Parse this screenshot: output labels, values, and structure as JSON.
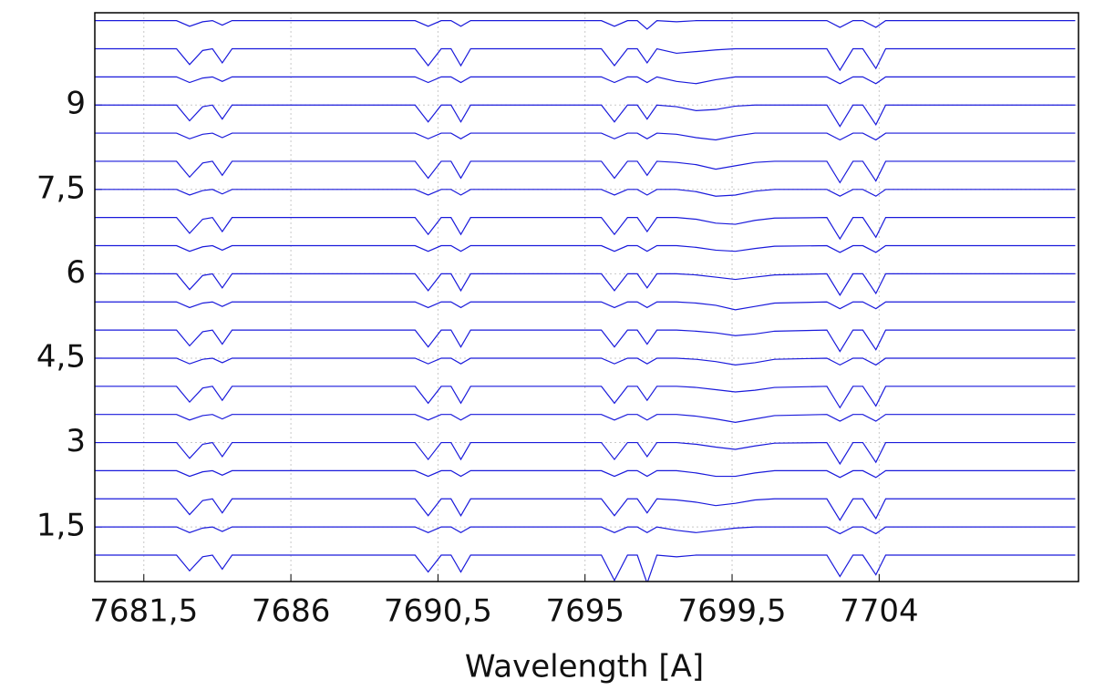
{
  "chart_data": {
    "type": "line",
    "xlabel": "Wavelength [A]",
    "color": "#1a1adb",
    "grid": true,
    "xlim": [
      7680,
      7710.1
    ],
    "ylim": [
      0.53,
      10.64
    ],
    "xticks": [
      {
        "value": 7681.5,
        "label": "7681,5"
      },
      7686,
      {
        "value": 7690.5,
        "label": "7690,5"
      },
      7695,
      {
        "value": 7699.5,
        "label": "7699,5"
      },
      7704
    ],
    "yticks": [
      {
        "value": 1.5,
        "label": "1,5"
      },
      3,
      {
        "value": 4.5,
        "label": "4,5"
      },
      6,
      {
        "value": 7.5,
        "label": "7,5"
      },
      9
    ],
    "x": [
      7680,
      7682.5,
      7682.9,
      7683.3,
      7683.6,
      7683.9,
      7684.2,
      7686,
      7689.8,
      7690.2,
      7690.6,
      7690.9,
      7691.2,
      7691.5,
      7694,
      7695.5,
      7695.9,
      7696.3,
      7696.6,
      7696.9,
      7697.2,
      7697.8,
      7698.4,
      7699,
      7699.6,
      7700.2,
      7700.8,
      7702.4,
      7702.8,
      7703.2,
      7703.5,
      7703.9,
      7704.2,
      7707,
      7710
    ],
    "series": [
      {
        "values": [
          1,
          1,
          0.72,
          0.97,
          1,
          0.75,
          1,
          1,
          1,
          0.7,
          1,
          1,
          0.7,
          1,
          1,
          1,
          0.55,
          1,
          1,
          0.5,
          1,
          0.97,
          1,
          1,
          1,
          1,
          1,
          1,
          0.62,
          1,
          1,
          0.65,
          1,
          1,
          1
        ]
      },
      {
        "values": [
          1.5,
          1.5,
          1.4,
          1.48,
          1.5,
          1.42,
          1.5,
          1.5,
          1.5,
          1.4,
          1.5,
          1.5,
          1.4,
          1.5,
          1.5,
          1.5,
          1.4,
          1.5,
          1.5,
          1.4,
          1.5,
          1.44,
          1.4,
          1.44,
          1.48,
          1.5,
          1.5,
          1.5,
          1.38,
          1.5,
          1.5,
          1.38,
          1.5,
          1.5,
          1.5
        ]
      },
      {
        "values": [
          2,
          2,
          1.72,
          1.97,
          2,
          1.75,
          2,
          2,
          2,
          1.7,
          2,
          2,
          1.7,
          2,
          2,
          2,
          1.7,
          2,
          2,
          1.75,
          2,
          1.98,
          1.94,
          1.88,
          1.92,
          1.98,
          2,
          2,
          1.62,
          2,
          2,
          1.65,
          2,
          2,
          2
        ]
      },
      {
        "values": [
          2.5,
          2.5,
          2.4,
          2.48,
          2.5,
          2.42,
          2.5,
          2.5,
          2.5,
          2.4,
          2.5,
          2.5,
          2.4,
          2.5,
          2.5,
          2.5,
          2.4,
          2.5,
          2.5,
          2.4,
          2.5,
          2.5,
          2.46,
          2.4,
          2.4,
          2.46,
          2.5,
          2.5,
          2.38,
          2.5,
          2.5,
          2.38,
          2.5,
          2.5,
          2.5
        ]
      },
      {
        "values": [
          3,
          3,
          2.72,
          2.97,
          3,
          2.75,
          3,
          3,
          3,
          2.7,
          3,
          3,
          2.7,
          3,
          3,
          3,
          2.7,
          3,
          3,
          2.75,
          3,
          3,
          2.97,
          2.92,
          2.88,
          2.94,
          2.99,
          3,
          2.62,
          3,
          3,
          2.65,
          3,
          3,
          3
        ]
      },
      {
        "values": [
          3.5,
          3.5,
          3.4,
          3.48,
          3.5,
          3.42,
          3.5,
          3.5,
          3.5,
          3.4,
          3.5,
          3.5,
          3.4,
          3.5,
          3.5,
          3.5,
          3.4,
          3.5,
          3.5,
          3.4,
          3.5,
          3.5,
          3.47,
          3.42,
          3.36,
          3.42,
          3.48,
          3.5,
          3.38,
          3.5,
          3.5,
          3.38,
          3.5,
          3.5,
          3.5
        ]
      },
      {
        "values": [
          4,
          4,
          3.72,
          3.97,
          4,
          3.75,
          4,
          4,
          4,
          3.7,
          4,
          4,
          3.7,
          4,
          4,
          4,
          3.7,
          4,
          4,
          3.75,
          4,
          4,
          3.98,
          3.94,
          3.9,
          3.93,
          3.98,
          4,
          3.62,
          4,
          4,
          3.65,
          4,
          4,
          4
        ]
      },
      {
        "values": [
          4.5,
          4.5,
          4.4,
          4.48,
          4.5,
          4.42,
          4.5,
          4.5,
          4.5,
          4.4,
          4.5,
          4.5,
          4.4,
          4.5,
          4.5,
          4.5,
          4.4,
          4.5,
          4.5,
          4.4,
          4.5,
          4.5,
          4.48,
          4.44,
          4.38,
          4.42,
          4.48,
          4.5,
          4.38,
          4.5,
          4.5,
          4.38,
          4.5,
          4.5,
          4.5
        ]
      },
      {
        "values": [
          5,
          5,
          4.72,
          4.97,
          5,
          4.75,
          5,
          5,
          5,
          4.7,
          5,
          5,
          4.7,
          5,
          5,
          5,
          4.7,
          5,
          5,
          4.75,
          5,
          5,
          4.98,
          4.95,
          4.9,
          4.93,
          4.98,
          5,
          4.62,
          5,
          5,
          4.65,
          5,
          5,
          5
        ]
      },
      {
        "values": [
          5.5,
          5.5,
          5.4,
          5.48,
          5.5,
          5.42,
          5.5,
          5.5,
          5.5,
          5.4,
          5.5,
          5.5,
          5.4,
          5.5,
          5.5,
          5.5,
          5.4,
          5.5,
          5.5,
          5.4,
          5.5,
          5.5,
          5.48,
          5.44,
          5.36,
          5.42,
          5.48,
          5.5,
          5.38,
          5.5,
          5.5,
          5.38,
          5.5,
          5.5,
          5.5
        ]
      },
      {
        "values": [
          6,
          6,
          5.72,
          5.97,
          6,
          5.75,
          6,
          6,
          6,
          5.7,
          6,
          6,
          5.7,
          6,
          6,
          6,
          5.7,
          6,
          6,
          5.75,
          6,
          6,
          5.98,
          5.94,
          5.9,
          5.94,
          5.98,
          6,
          5.62,
          6,
          6,
          5.65,
          6,
          6,
          6
        ]
      },
      {
        "values": [
          6.5,
          6.5,
          6.4,
          6.48,
          6.5,
          6.42,
          6.5,
          6.5,
          6.5,
          6.4,
          6.5,
          6.5,
          6.4,
          6.5,
          6.5,
          6.5,
          6.4,
          6.5,
          6.5,
          6.4,
          6.5,
          6.5,
          6.47,
          6.42,
          6.4,
          6.45,
          6.49,
          6.5,
          6.38,
          6.5,
          6.5,
          6.38,
          6.5,
          6.5,
          6.5
        ]
      },
      {
        "values": [
          7,
          7,
          6.72,
          6.97,
          7,
          6.75,
          7,
          7,
          7,
          6.7,
          7,
          7,
          6.7,
          7,
          7,
          7,
          6.7,
          7,
          7,
          6.75,
          7,
          7,
          6.97,
          6.9,
          6.88,
          6.95,
          6.99,
          7,
          6.62,
          7,
          7,
          6.65,
          7,
          7,
          7
        ]
      },
      {
        "values": [
          7.5,
          7.5,
          7.4,
          7.48,
          7.5,
          7.42,
          7.5,
          7.5,
          7.5,
          7.4,
          7.5,
          7.5,
          7.4,
          7.5,
          7.5,
          7.5,
          7.4,
          7.5,
          7.5,
          7.4,
          7.5,
          7.5,
          7.46,
          7.38,
          7.4,
          7.47,
          7.5,
          7.5,
          7.38,
          7.5,
          7.5,
          7.38,
          7.5,
          7.5,
          7.5
        ]
      },
      {
        "values": [
          8,
          8,
          7.72,
          7.97,
          8,
          7.75,
          8,
          8,
          8,
          7.7,
          8,
          8,
          7.7,
          8,
          8,
          8,
          7.7,
          8,
          8,
          7.75,
          8,
          7.98,
          7.94,
          7.86,
          7.92,
          7.98,
          8,
          8,
          7.62,
          8,
          8,
          7.65,
          8,
          8,
          8
        ]
      },
      {
        "values": [
          8.5,
          8.5,
          8.4,
          8.48,
          8.5,
          8.42,
          8.5,
          8.5,
          8.5,
          8.4,
          8.5,
          8.5,
          8.4,
          8.5,
          8.5,
          8.5,
          8.4,
          8.5,
          8.5,
          8.4,
          8.5,
          8.48,
          8.42,
          8.38,
          8.45,
          8.5,
          8.5,
          8.5,
          8.38,
          8.5,
          8.5,
          8.38,
          8.5,
          8.5,
          8.5
        ]
      },
      {
        "values": [
          9,
          9,
          8.72,
          8.97,
          9,
          8.75,
          9,
          9,
          9,
          8.7,
          9,
          9,
          8.7,
          9,
          9,
          9,
          8.7,
          9,
          9,
          8.75,
          9,
          8.97,
          8.9,
          8.92,
          8.98,
          9,
          9,
          9,
          8.62,
          9,
          9,
          8.65,
          9,
          9,
          9
        ]
      },
      {
        "values": [
          9.5,
          9.5,
          9.4,
          9.48,
          9.5,
          9.42,
          9.5,
          9.5,
          9.5,
          9.4,
          9.5,
          9.5,
          9.4,
          9.5,
          9.5,
          9.5,
          9.4,
          9.5,
          9.5,
          9.4,
          9.5,
          9.42,
          9.38,
          9.45,
          9.5,
          9.5,
          9.5,
          9.5,
          9.38,
          9.5,
          9.5,
          9.38,
          9.5,
          9.5,
          9.5
        ]
      },
      {
        "values": [
          10,
          10,
          9.72,
          9.97,
          10,
          9.75,
          10,
          10,
          10,
          9.7,
          10,
          10,
          9.7,
          10,
          10,
          10,
          9.7,
          10,
          10,
          9.75,
          10,
          9.92,
          9.95,
          9.98,
          10,
          10,
          10,
          10,
          9.62,
          10,
          10,
          9.65,
          10,
          10,
          10
        ]
      },
      {
        "values": [
          10.5,
          10.5,
          10.4,
          10.48,
          10.5,
          10.42,
          10.5,
          10.5,
          10.5,
          10.4,
          10.5,
          10.5,
          10.4,
          10.5,
          10.5,
          10.5,
          10.4,
          10.5,
          10.5,
          10.35,
          10.5,
          10.48,
          10.5,
          10.5,
          10.5,
          10.5,
          10.5,
          10.5,
          10.38,
          10.5,
          10.5,
          10.38,
          10.5,
          10.5,
          10.5
        ]
      }
    ]
  }
}
